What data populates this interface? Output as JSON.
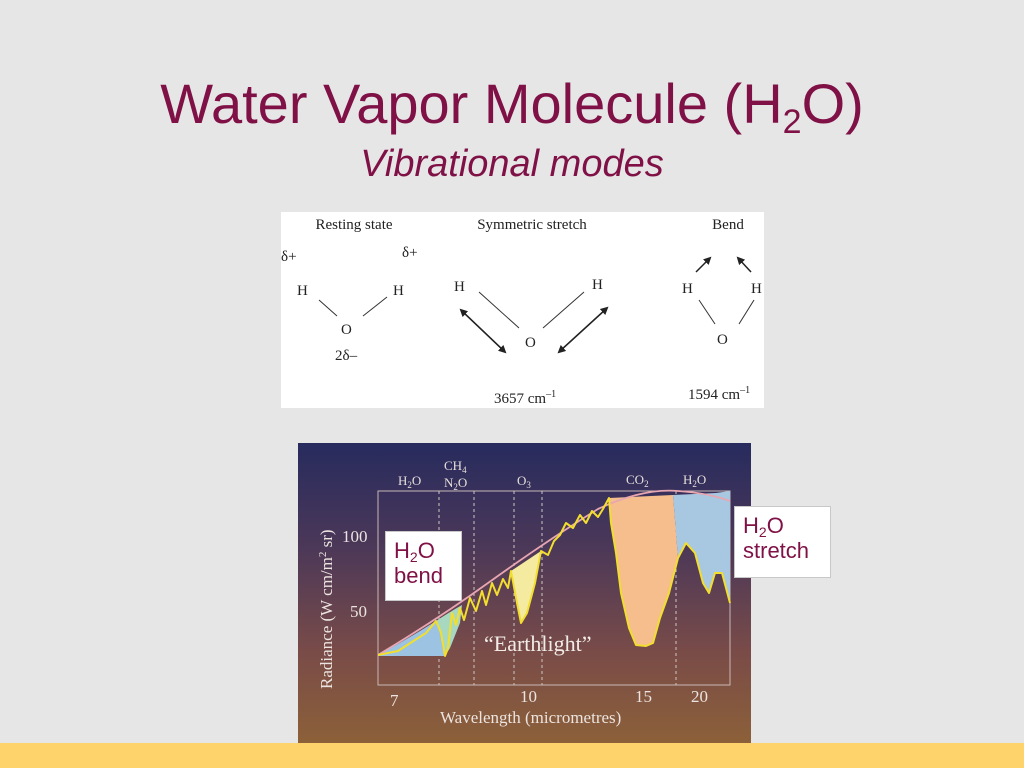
{
  "slide": {
    "title_prefix": "Water Vapor Molecule (H",
    "title_sub": "2",
    "title_suffix": "O)",
    "subtitle": "Vibrational modes"
  },
  "colors": {
    "title": "#7f1146",
    "background": "#e6e6e6",
    "footer_bar": "#ffd36b"
  },
  "modes_diagram": {
    "labels": {
      "resting": "Resting state",
      "symmetric": "Symmetric stretch",
      "bend": "Bend"
    },
    "atoms": {
      "hydrogen": "H",
      "oxygen": "O"
    },
    "charges": {
      "h_partial": "δ+",
      "o_partial": "2δ–"
    },
    "frequencies": {
      "symmetric": "3657 cm",
      "bend": "1594 cm",
      "exponent": "–1"
    }
  },
  "spectrum": {
    "ylabel": "Radiance (W cm/m",
    "ylabel_exp": "2",
    "ylabel_end": " sr)",
    "xlabel": "Wavelength (micrometres)",
    "annotation": "“Earthlight”",
    "x_ticks": [
      "7",
      "10",
      "15",
      "20"
    ],
    "y_ticks": [
      "100",
      "50"
    ],
    "bands": {
      "h2o_left": "H",
      "ch4": "CH",
      "n2o": "N",
      "o3": "O",
      "co2": "CO",
      "h2o_right": "H",
      "sub2": "2",
      "sub3": "3",
      "sub4": "4",
      "o_suffix": "O"
    }
  },
  "callouts": {
    "bend": {
      "prefix": "H",
      "sub": "2",
      "suffix": "O",
      "line2": "bend"
    },
    "stretch": {
      "prefix": "H",
      "sub": "2",
      "suffix": "O",
      "line2": "stretch"
    }
  }
}
